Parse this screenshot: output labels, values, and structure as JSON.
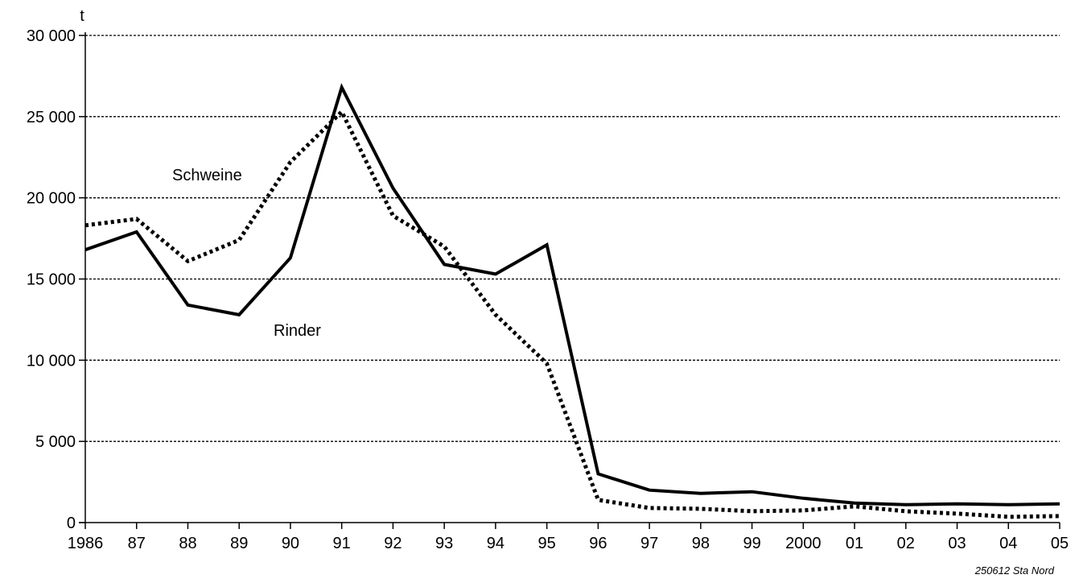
{
  "chart_data": {
    "type": "line",
    "ylabel": "t",
    "ylim": [
      0,
      30000
    ],
    "yticks": [
      0,
      5000,
      10000,
      15000,
      20000,
      25000,
      30000
    ],
    "ytick_labels": [
      "0",
      "5 000",
      "10 000",
      "15 000",
      "20 000",
      "25 000",
      "30 000"
    ],
    "categories": [
      "1986",
      "87",
      "88",
      "89",
      "90",
      "91",
      "92",
      "93",
      "94",
      "95",
      "96",
      "97",
      "98",
      "99",
      "2000",
      "01",
      "02",
      "03",
      "04",
      "05"
    ],
    "grid": "horizontal dotted",
    "series": [
      {
        "name": "Rinder",
        "style": "solid",
        "values": [
          16800,
          17900,
          13400,
          12800,
          16300,
          26800,
          20600,
          15900,
          15300,
          17100,
          3000,
          2000,
          1800,
          1900,
          1500,
          1200,
          1100,
          1150,
          1100,
          1150
        ]
      },
      {
        "name": "Schweine",
        "style": "dotted",
        "values": [
          18300,
          18700,
          16100,
          17400,
          22200,
          25300,
          18900,
          17000,
          12800,
          9800,
          1400,
          900,
          850,
          700,
          750,
          1000,
          700,
          550,
          350,
          400
        ]
      }
    ],
    "source": "250612 Sta Nord"
  },
  "colors": {
    "line": "#000000",
    "grid": "#000000",
    "background": "#ffffff"
  }
}
